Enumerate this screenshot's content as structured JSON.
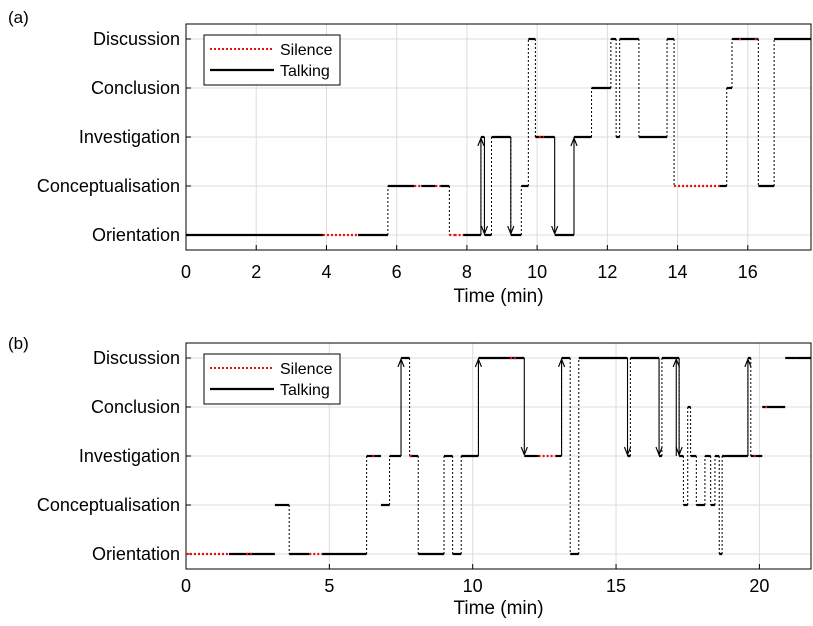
{
  "colors": {
    "silence": "#e8100c",
    "talking": "#000000",
    "transition": "#000000",
    "grid": "#dcdcdc"
  },
  "chart_data": [
    {
      "panel": "(a)",
      "type": "line",
      "xlabel": "Time (min)",
      "xlim": [
        0,
        17.8
      ],
      "xticks": [
        0,
        2,
        4,
        6,
        8,
        10,
        12,
        14,
        16
      ],
      "categories": [
        "Orientation",
        "Conceptualisation",
        "Investigation",
        "Conclusion",
        "Discussion"
      ],
      "grid": true,
      "legend": {
        "placement": "top-left",
        "entries": [
          "Silence",
          "Talking"
        ]
      },
      "segments": [
        [
          0,
          3.9,
          0,
          "talking"
        ],
        [
          3.9,
          4.9,
          0,
          "silence"
        ],
        [
          4.9,
          5.75,
          0,
          "talking"
        ],
        [
          5.75,
          6.5,
          1,
          "talking"
        ],
        [
          6.5,
          6.7,
          1,
          "silence"
        ],
        [
          6.7,
          7.1,
          1,
          "talking"
        ],
        [
          7.1,
          7.25,
          1,
          "silence"
        ],
        [
          7.25,
          7.5,
          1,
          "talking"
        ],
        [
          7.5,
          7.65,
          0,
          "silence"
        ],
        [
          7.65,
          7.9,
          0,
          "silence"
        ],
        [
          7.9,
          8.4,
          0,
          "talking"
        ],
        [
          8.4,
          8.5,
          2,
          "talking"
        ],
        [
          8.5,
          8.7,
          0,
          "talking"
        ],
        [
          8.7,
          9.25,
          2,
          "talking"
        ],
        [
          9.25,
          9.55,
          0,
          "talking"
        ],
        [
          9.55,
          9.75,
          1,
          "talking"
        ],
        [
          9.75,
          9.95,
          4,
          "talking"
        ],
        [
          9.95,
          10.5,
          2,
          "talking"
        ],
        [
          10.05,
          10.2,
          2,
          "silence"
        ],
        [
          10.5,
          11.05,
          0,
          "talking"
        ],
        [
          11.05,
          11.55,
          2,
          "talking"
        ],
        [
          11.55,
          12.1,
          3,
          "talking"
        ],
        [
          12.1,
          12.25,
          4,
          "talking"
        ],
        [
          12.25,
          12.35,
          2,
          "talking"
        ],
        [
          12.35,
          12.9,
          4,
          "talking"
        ],
        [
          12.9,
          13.7,
          2,
          "talking"
        ],
        [
          13.7,
          13.9,
          4,
          "talking"
        ],
        [
          13.9,
          15.2,
          1,
          "silence"
        ],
        [
          15.2,
          15.4,
          1,
          "talking"
        ],
        [
          15.4,
          15.55,
          3,
          "talking"
        ],
        [
          15.55,
          16.3,
          4,
          "talking"
        ],
        [
          15.75,
          15.85,
          4,
          "silence"
        ],
        [
          16.2,
          16.3,
          4,
          "silence"
        ],
        [
          16.3,
          16.75,
          1,
          "talking"
        ],
        [
          16.75,
          17.8,
          4,
          "talking"
        ]
      ],
      "arrows": [
        [
          8.4,
          0,
          2
        ],
        [
          8.5,
          2,
          0
        ],
        [
          9.25,
          2,
          0
        ],
        [
          10.5,
          2,
          0
        ],
        [
          11.05,
          0,
          2
        ]
      ]
    },
    {
      "panel": "(b)",
      "type": "line",
      "xlabel": "Time (min)",
      "xlim": [
        0,
        21.8
      ],
      "xticks": [
        0,
        5,
        10,
        15,
        20
      ],
      "categories": [
        "Orientation",
        "Conceptualisation",
        "Investigation",
        "Conclusion",
        "Discussion"
      ],
      "grid": true,
      "legend": {
        "placement": "top-left",
        "entries": [
          "Silence",
          "Talking"
        ]
      },
      "segments": [
        [
          0,
          1.5,
          0,
          "silence"
        ],
        [
          1.5,
          3.1,
          0,
          "talking"
        ],
        [
          2.1,
          2.3,
          0,
          "silence"
        ],
        [
          3.1,
          3.6,
          1,
          "talking"
        ],
        [
          3.6,
          4.3,
          0,
          "talking"
        ],
        [
          4.3,
          4.75,
          0,
          "silence"
        ],
        [
          4.75,
          6.3,
          0,
          "talking"
        ],
        [
          6.3,
          6.8,
          2,
          "talking"
        ],
        [
          6.5,
          6.6,
          2,
          "silence"
        ],
        [
          6.8,
          7.1,
          1,
          "talking"
        ],
        [
          7.1,
          7.5,
          2,
          "talking"
        ],
        [
          7.5,
          7.8,
          4,
          "talking"
        ],
        [
          7.8,
          8.1,
          2,
          "talking"
        ],
        [
          7.8,
          7.9,
          2,
          "silence"
        ],
        [
          8.1,
          9.0,
          0,
          "talking"
        ],
        [
          9.0,
          9.3,
          2,
          "talking"
        ],
        [
          9.3,
          9.6,
          0,
          "talking"
        ],
        [
          9.6,
          10.2,
          2,
          "talking"
        ],
        [
          10.2,
          11.8,
          4,
          "talking"
        ],
        [
          11.3,
          11.5,
          4,
          "silence"
        ],
        [
          11.8,
          12.3,
          2,
          "talking"
        ],
        [
          12.3,
          12.9,
          2,
          "silence"
        ],
        [
          12.9,
          13.1,
          2,
          "talking"
        ],
        [
          13.1,
          13.4,
          4,
          "talking"
        ],
        [
          13.4,
          13.7,
          0,
          "talking"
        ],
        [
          13.7,
          15.4,
          4,
          "talking"
        ],
        [
          15.4,
          15.5,
          2,
          "talking"
        ],
        [
          15.5,
          16.5,
          4,
          "talking"
        ],
        [
          16.5,
          16.6,
          2,
          "talking"
        ],
        [
          16.6,
          17.2,
          4,
          "talking"
        ],
        [
          17.2,
          17.35,
          2,
          "talking"
        ],
        [
          17.35,
          17.5,
          1,
          "talking"
        ],
        [
          17.5,
          17.6,
          3,
          "talking"
        ],
        [
          17.6,
          17.8,
          2,
          "talking"
        ],
        [
          17.8,
          18.1,
          1,
          "talking"
        ],
        [
          18.1,
          18.3,
          2,
          "talking"
        ],
        [
          18.3,
          18.45,
          1,
          "talking"
        ],
        [
          18.45,
          18.6,
          2,
          "talking"
        ],
        [
          18.6,
          18.7,
          0,
          "talking"
        ],
        [
          18.7,
          19.6,
          2,
          "talking"
        ],
        [
          19.6,
          19.7,
          4,
          "talking"
        ],
        [
          19.7,
          20.1,
          2,
          "talking"
        ],
        [
          19.8,
          19.9,
          2,
          "silence"
        ],
        [
          20.1,
          20.9,
          3,
          "talking"
        ],
        [
          20.2,
          20.3,
          3,
          "silence"
        ],
        [
          20.9,
          21.3,
          4,
          "talking"
        ],
        [
          21.3,
          21.8,
          4,
          "talking"
        ]
      ],
      "arrows": [
        [
          7.5,
          2,
          4
        ],
        [
          10.2,
          2,
          4
        ],
        [
          11.8,
          4,
          2
        ],
        [
          13.1,
          2,
          4
        ],
        [
          15.4,
          4,
          2
        ],
        [
          16.5,
          4,
          2
        ],
        [
          17.1,
          2,
          4
        ],
        [
          17.2,
          4,
          2
        ],
        [
          19.6,
          2,
          4
        ]
      ]
    }
  ]
}
